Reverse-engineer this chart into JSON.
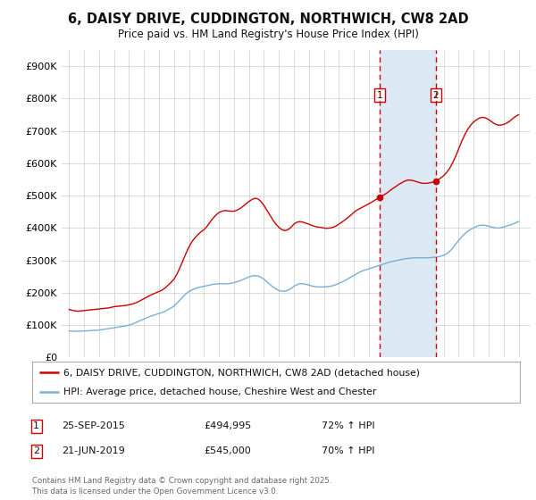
{
  "title": "6, DAISY DRIVE, CUDDINGTON, NORTHWICH, CW8 2AD",
  "subtitle": "Price paid vs. HM Land Registry's House Price Index (HPI)",
  "legend_house": "6, DAISY DRIVE, CUDDINGTON, NORTHWICH, CW8 2AD (detached house)",
  "legend_hpi": "HPI: Average price, detached house, Cheshire West and Chester",
  "footnote": "Contains HM Land Registry data © Crown copyright and database right 2025.\nThis data is licensed under the Open Government Licence v3.0.",
  "marker1_label": "1",
  "marker2_label": "2",
  "marker1_date": "25-SEP-2015",
  "marker1_price": "£494,995",
  "marker1_hpi": "72% ↑ HPI",
  "marker2_date": "21-JUN-2019",
  "marker2_price": "£545,000",
  "marker2_hpi": "70% ↑ HPI",
  "marker1_x": 2015.73,
  "marker2_x": 2019.47,
  "house_color": "#cc0000",
  "hpi_color": "#7aaed6",
  "span_color": "#dde8f5",
  "background_color": "#ffffff",
  "xlim": [
    1994.5,
    2025.8
  ],
  "ylim": [
    0,
    950000
  ],
  "yticks": [
    0,
    100000,
    200000,
    300000,
    400000,
    500000,
    600000,
    700000,
    800000,
    900000
  ],
  "ytick_labels": [
    "£0",
    "£100K",
    "£200K",
    "£300K",
    "£400K",
    "£500K",
    "£600K",
    "£700K",
    "£800K",
    "£900K"
  ],
  "xticks": [
    1995,
    1996,
    1997,
    1998,
    1999,
    2000,
    2001,
    2002,
    2003,
    2004,
    2005,
    2006,
    2007,
    2008,
    2009,
    2010,
    2011,
    2012,
    2013,
    2014,
    2015,
    2016,
    2017,
    2018,
    2019,
    2020,
    2021,
    2022,
    2023,
    2024,
    2025
  ],
  "house_prices": [
    [
      1995.0,
      148000
    ],
    [
      1995.2,
      146000
    ],
    [
      1995.4,
      144000
    ],
    [
      1995.6,
      143000
    ],
    [
      1995.8,
      144000
    ],
    [
      1996.0,
      145000
    ],
    [
      1996.2,
      146000
    ],
    [
      1996.4,
      147000
    ],
    [
      1996.6,
      148000
    ],
    [
      1996.8,
      149000
    ],
    [
      1997.0,
      150000
    ],
    [
      1997.2,
      151000
    ],
    [
      1997.4,
      152000
    ],
    [
      1997.6,
      153000
    ],
    [
      1997.8,
      155000
    ],
    [
      1998.0,
      157000
    ],
    [
      1998.2,
      158000
    ],
    [
      1998.4,
      159000
    ],
    [
      1998.6,
      160000
    ],
    [
      1998.8,
      161000
    ],
    [
      1999.0,
      163000
    ],
    [
      1999.2,
      165000
    ],
    [
      1999.4,
      168000
    ],
    [
      1999.6,
      172000
    ],
    [
      1999.8,
      177000
    ],
    [
      2000.0,
      182000
    ],
    [
      2000.2,
      187000
    ],
    [
      2000.4,
      192000
    ],
    [
      2000.6,
      196000
    ],
    [
      2000.8,
      200000
    ],
    [
      2001.0,
      204000
    ],
    [
      2001.2,
      208000
    ],
    [
      2001.4,
      215000
    ],
    [
      2001.6,
      223000
    ],
    [
      2001.8,
      232000
    ],
    [
      2002.0,
      242000
    ],
    [
      2002.2,
      258000
    ],
    [
      2002.4,
      278000
    ],
    [
      2002.6,
      300000
    ],
    [
      2002.8,
      322000
    ],
    [
      2003.0,
      342000
    ],
    [
      2003.2,
      358000
    ],
    [
      2003.4,
      370000
    ],
    [
      2003.6,
      380000
    ],
    [
      2003.8,
      388000
    ],
    [
      2004.0,
      395000
    ],
    [
      2004.2,
      405000
    ],
    [
      2004.4,
      418000
    ],
    [
      2004.6,
      430000
    ],
    [
      2004.8,
      440000
    ],
    [
      2005.0,
      448000
    ],
    [
      2005.2,
      452000
    ],
    [
      2005.4,
      454000
    ],
    [
      2005.6,
      453000
    ],
    [
      2005.8,
      452000
    ],
    [
      2006.0,
      452000
    ],
    [
      2006.2,
      455000
    ],
    [
      2006.4,
      460000
    ],
    [
      2006.6,
      467000
    ],
    [
      2006.8,
      475000
    ],
    [
      2007.0,
      482000
    ],
    [
      2007.2,
      488000
    ],
    [
      2007.4,
      492000
    ],
    [
      2007.6,
      490000
    ],
    [
      2007.8,
      482000
    ],
    [
      2008.0,
      470000
    ],
    [
      2008.2,
      455000
    ],
    [
      2008.4,
      440000
    ],
    [
      2008.6,
      425000
    ],
    [
      2008.8,
      412000
    ],
    [
      2009.0,
      402000
    ],
    [
      2009.2,
      395000
    ],
    [
      2009.4,
      392000
    ],
    [
      2009.6,
      395000
    ],
    [
      2009.8,
      402000
    ],
    [
      2010.0,
      412000
    ],
    [
      2010.2,
      418000
    ],
    [
      2010.4,
      420000
    ],
    [
      2010.6,
      418000
    ],
    [
      2010.8,
      415000
    ],
    [
      2011.0,
      412000
    ],
    [
      2011.2,
      408000
    ],
    [
      2011.4,
      405000
    ],
    [
      2011.6,
      403000
    ],
    [
      2011.8,
      402000
    ],
    [
      2012.0,
      400000
    ],
    [
      2012.2,
      399000
    ],
    [
      2012.4,
      400000
    ],
    [
      2012.6,
      402000
    ],
    [
      2012.8,
      406000
    ],
    [
      2013.0,
      412000
    ],
    [
      2013.2,
      418000
    ],
    [
      2013.4,
      425000
    ],
    [
      2013.6,
      432000
    ],
    [
      2013.8,
      440000
    ],
    [
      2014.0,
      448000
    ],
    [
      2014.2,
      455000
    ],
    [
      2014.4,
      460000
    ],
    [
      2014.6,
      465000
    ],
    [
      2014.8,
      470000
    ],
    [
      2015.0,
      475000
    ],
    [
      2015.2,
      480000
    ],
    [
      2015.4,
      486000
    ],
    [
      2015.6,
      491000
    ],
    [
      2015.73,
      494995
    ],
    [
      2015.8,
      497000
    ],
    [
      2016.0,
      502000
    ],
    [
      2016.2,
      508000
    ],
    [
      2016.4,
      515000
    ],
    [
      2016.6,
      522000
    ],
    [
      2016.8,
      528000
    ],
    [
      2017.0,
      535000
    ],
    [
      2017.2,
      540000
    ],
    [
      2017.4,
      545000
    ],
    [
      2017.6,
      548000
    ],
    [
      2017.8,
      548000
    ],
    [
      2018.0,
      546000
    ],
    [
      2018.2,
      543000
    ],
    [
      2018.4,
      540000
    ],
    [
      2018.6,
      538000
    ],
    [
      2018.8,
      538000
    ],
    [
      2019.0,
      539000
    ],
    [
      2019.2,
      541000
    ],
    [
      2019.4,
      543000
    ],
    [
      2019.47,
      545000
    ],
    [
      2019.6,
      548000
    ],
    [
      2019.8,
      555000
    ],
    [
      2020.0,
      562000
    ],
    [
      2020.2,
      572000
    ],
    [
      2020.4,
      585000
    ],
    [
      2020.6,
      602000
    ],
    [
      2020.8,
      622000
    ],
    [
      2021.0,
      645000
    ],
    [
      2021.2,
      668000
    ],
    [
      2021.4,
      688000
    ],
    [
      2021.6,
      705000
    ],
    [
      2021.8,
      718000
    ],
    [
      2022.0,
      728000
    ],
    [
      2022.2,
      735000
    ],
    [
      2022.4,
      740000
    ],
    [
      2022.6,
      742000
    ],
    [
      2022.8,
      740000
    ],
    [
      2023.0,
      735000
    ],
    [
      2023.2,
      728000
    ],
    [
      2023.4,
      722000
    ],
    [
      2023.6,
      718000
    ],
    [
      2023.8,
      718000
    ],
    [
      2024.0,
      720000
    ],
    [
      2024.2,
      724000
    ],
    [
      2024.4,
      730000
    ],
    [
      2024.6,
      738000
    ],
    [
      2024.8,
      745000
    ],
    [
      2025.0,
      750000
    ]
  ],
  "hpi_prices": [
    [
      1995.0,
      82000
    ],
    [
      1995.2,
      81500
    ],
    [
      1995.4,
      81000
    ],
    [
      1995.6,
      81000
    ],
    [
      1995.8,
      81500
    ],
    [
      1996.0,
      82000
    ],
    [
      1996.2,
      82500
    ],
    [
      1996.4,
      83000
    ],
    [
      1996.6,
      83500
    ],
    [
      1996.8,
      84000
    ],
    [
      1997.0,
      85000
    ],
    [
      1997.2,
      86000
    ],
    [
      1997.4,
      87500
    ],
    [
      1997.6,
      89000
    ],
    [
      1997.8,
      90500
    ],
    [
      1998.0,
      92000
    ],
    [
      1998.2,
      93500
    ],
    [
      1998.4,
      95000
    ],
    [
      1998.6,
      96500
    ],
    [
      1998.8,
      98000
    ],
    [
      1999.0,
      100000
    ],
    [
      1999.2,
      103000
    ],
    [
      1999.4,
      107000
    ],
    [
      1999.6,
      111000
    ],
    [
      1999.8,
      115000
    ],
    [
      2000.0,
      119000
    ],
    [
      2000.2,
      123000
    ],
    [
      2000.4,
      127000
    ],
    [
      2000.6,
      130000
    ],
    [
      2000.8,
      133000
    ],
    [
      2001.0,
      136000
    ],
    [
      2001.2,
      139000
    ],
    [
      2001.4,
      143000
    ],
    [
      2001.6,
      148000
    ],
    [
      2001.8,
      153000
    ],
    [
      2002.0,
      159000
    ],
    [
      2002.2,
      168000
    ],
    [
      2002.4,
      178000
    ],
    [
      2002.6,
      188000
    ],
    [
      2002.8,
      197000
    ],
    [
      2003.0,
      204000
    ],
    [
      2003.2,
      209000
    ],
    [
      2003.4,
      213000
    ],
    [
      2003.6,
      216000
    ],
    [
      2003.8,
      218000
    ],
    [
      2004.0,
      220000
    ],
    [
      2004.2,
      222000
    ],
    [
      2004.4,
      224000
    ],
    [
      2004.6,
      226000
    ],
    [
      2004.8,
      227000
    ],
    [
      2005.0,
      228000
    ],
    [
      2005.2,
      228000
    ],
    [
      2005.4,
      228000
    ],
    [
      2005.6,
      228000
    ],
    [
      2005.8,
      229000
    ],
    [
      2006.0,
      231000
    ],
    [
      2006.2,
      234000
    ],
    [
      2006.4,
      237000
    ],
    [
      2006.6,
      241000
    ],
    [
      2006.8,
      245000
    ],
    [
      2007.0,
      249000
    ],
    [
      2007.2,
      252000
    ],
    [
      2007.4,
      253000
    ],
    [
      2007.6,
      252000
    ],
    [
      2007.8,
      248000
    ],
    [
      2008.0,
      242000
    ],
    [
      2008.2,
      234000
    ],
    [
      2008.4,
      226000
    ],
    [
      2008.6,
      218000
    ],
    [
      2008.8,
      212000
    ],
    [
      2009.0,
      207000
    ],
    [
      2009.2,
      205000
    ],
    [
      2009.4,
      205000
    ],
    [
      2009.6,
      208000
    ],
    [
      2009.8,
      213000
    ],
    [
      2010.0,
      220000
    ],
    [
      2010.2,
      225000
    ],
    [
      2010.4,
      228000
    ],
    [
      2010.6,
      228000
    ],
    [
      2010.8,
      226000
    ],
    [
      2011.0,
      224000
    ],
    [
      2011.2,
      221000
    ],
    [
      2011.4,
      219000
    ],
    [
      2011.6,
      218000
    ],
    [
      2011.8,
      218000
    ],
    [
      2012.0,
      218000
    ],
    [
      2012.2,
      219000
    ],
    [
      2012.4,
      220000
    ],
    [
      2012.6,
      222000
    ],
    [
      2012.8,
      225000
    ],
    [
      2013.0,
      229000
    ],
    [
      2013.2,
      233000
    ],
    [
      2013.4,
      238000
    ],
    [
      2013.6,
      243000
    ],
    [
      2013.8,
      248000
    ],
    [
      2014.0,
      254000
    ],
    [
      2014.2,
      259000
    ],
    [
      2014.4,
      264000
    ],
    [
      2014.6,
      268000
    ],
    [
      2014.8,
      271000
    ],
    [
      2015.0,
      274000
    ],
    [
      2015.2,
      277000
    ],
    [
      2015.4,
      280000
    ],
    [
      2015.6,
      283000
    ],
    [
      2015.8,
      286000
    ],
    [
      2016.0,
      289000
    ],
    [
      2016.2,
      292000
    ],
    [
      2016.4,
      295000
    ],
    [
      2016.6,
      297000
    ],
    [
      2016.8,
      299000
    ],
    [
      2017.0,
      301000
    ],
    [
      2017.2,
      303000
    ],
    [
      2017.4,
      305000
    ],
    [
      2017.6,
      306000
    ],
    [
      2017.8,
      307000
    ],
    [
      2018.0,
      308000
    ],
    [
      2018.2,
      308000
    ],
    [
      2018.4,
      308000
    ],
    [
      2018.6,
      308000
    ],
    [
      2018.8,
      308000
    ],
    [
      2019.0,
      308000
    ],
    [
      2019.2,
      309000
    ],
    [
      2019.4,
      310000
    ],
    [
      2019.6,
      311000
    ],
    [
      2019.8,
      313000
    ],
    [
      2020.0,
      316000
    ],
    [
      2020.2,
      321000
    ],
    [
      2020.4,
      328000
    ],
    [
      2020.6,
      338000
    ],
    [
      2020.8,
      350000
    ],
    [
      2021.0,
      362000
    ],
    [
      2021.2,
      373000
    ],
    [
      2021.4,
      382000
    ],
    [
      2021.6,
      390000
    ],
    [
      2021.8,
      396000
    ],
    [
      2022.0,
      401000
    ],
    [
      2022.2,
      405000
    ],
    [
      2022.4,
      408000
    ],
    [
      2022.6,
      409000
    ],
    [
      2022.8,
      408000
    ],
    [
      2023.0,
      406000
    ],
    [
      2023.2,
      403000
    ],
    [
      2023.4,
      401000
    ],
    [
      2023.6,
      400000
    ],
    [
      2023.8,
      401000
    ],
    [
      2024.0,
      403000
    ],
    [
      2024.2,
      406000
    ],
    [
      2024.4,
      409000
    ],
    [
      2024.6,
      412000
    ],
    [
      2024.8,
      416000
    ],
    [
      2025.0,
      420000
    ]
  ]
}
